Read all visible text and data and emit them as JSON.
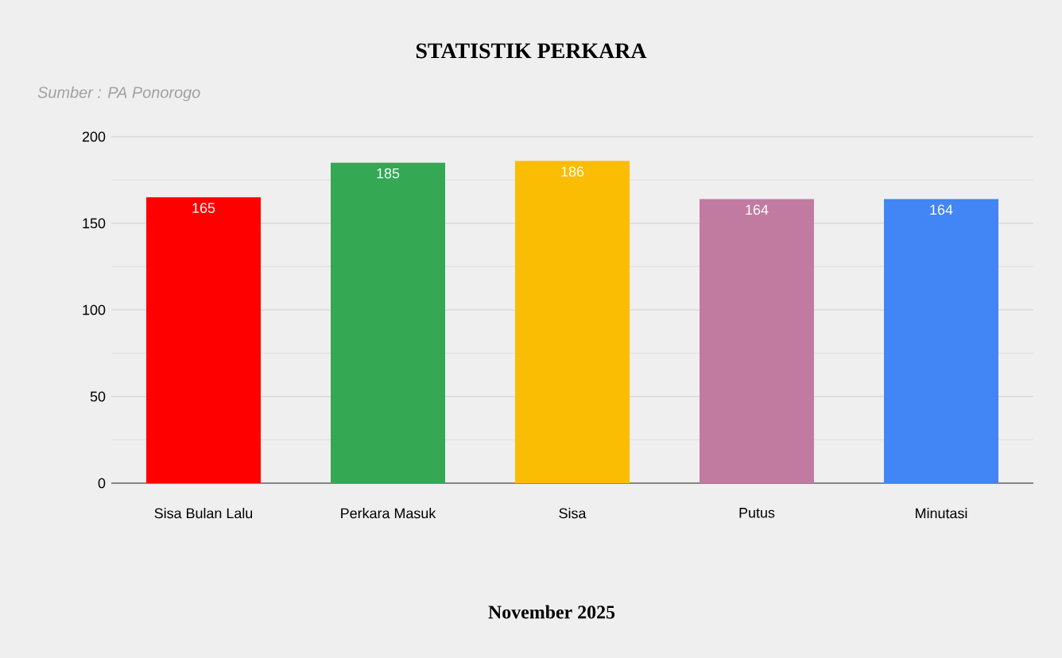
{
  "chart_data": {
    "type": "bar",
    "title": "STATISTIK PERKARA",
    "xlabel": "November 2025",
    "annotations": [
      "Sumber : PA Ponorogo"
    ],
    "categories": [
      "Sisa Bulan Lalu",
      "Perkara Masuk",
      "Sisa",
      "Putus",
      "Minutasi"
    ],
    "values": [
      165,
      185,
      186,
      164,
      164
    ],
    "colors": [
      "#ff0000",
      "#34a853",
      "#fbbc04",
      "#c27ba0",
      "#4285f4"
    ],
    "ylim": [
      0,
      200
    ],
    "yticks": [
      0,
      50,
      100,
      150,
      200
    ],
    "grid": "y",
    "data_labels": true
  }
}
